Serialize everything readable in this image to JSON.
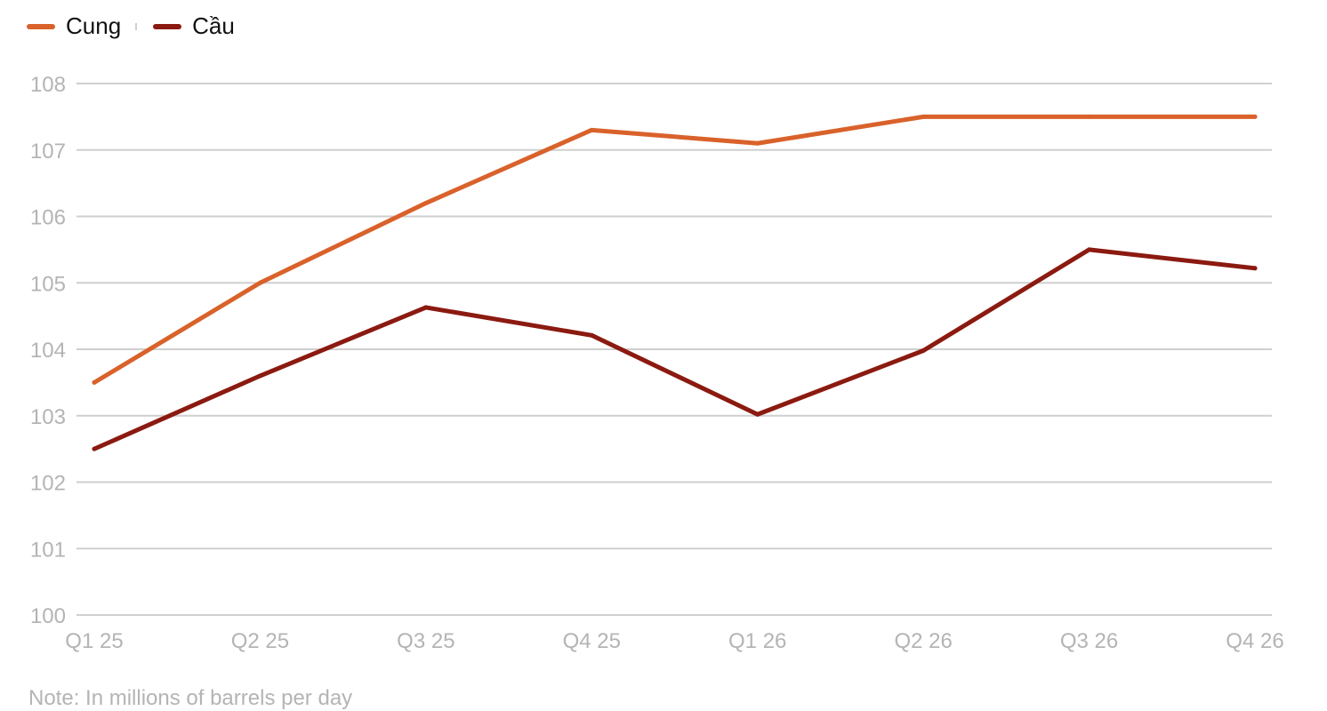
{
  "legend": {
    "items": [
      {
        "label": "Cung",
        "color": "#d9622b"
      },
      {
        "label": "Cầu",
        "color": "#8b1a10"
      }
    ]
  },
  "footnote": "Note: In millions of barrels per day",
  "chart_data": {
    "type": "line",
    "categories": [
      "Q1 25",
      "Q2 25",
      "Q3 25",
      "Q4 25",
      "Q1 26",
      "Q2 26",
      "Q3 26",
      "Q4 26"
    ],
    "series": [
      {
        "name": "Cung",
        "color": "#d9622b",
        "values": [
          103.5,
          105.0,
          106.2,
          107.3,
          107.1,
          107.5,
          107.5,
          107.5
        ]
      },
      {
        "name": "Cầu",
        "color": "#8b1a10",
        "values": [
          102.5,
          103.6,
          104.63,
          104.21,
          103.02,
          103.98,
          105.5,
          105.22
        ]
      }
    ],
    "yticks": [
      "100",
      "101",
      "102",
      "103",
      "104",
      "105",
      "106",
      "107",
      "108"
    ],
    "ylim": [
      100,
      108
    ],
    "grid": true,
    "legend_position": "top-left",
    "title": "",
    "xlabel": "",
    "ylabel": ""
  }
}
